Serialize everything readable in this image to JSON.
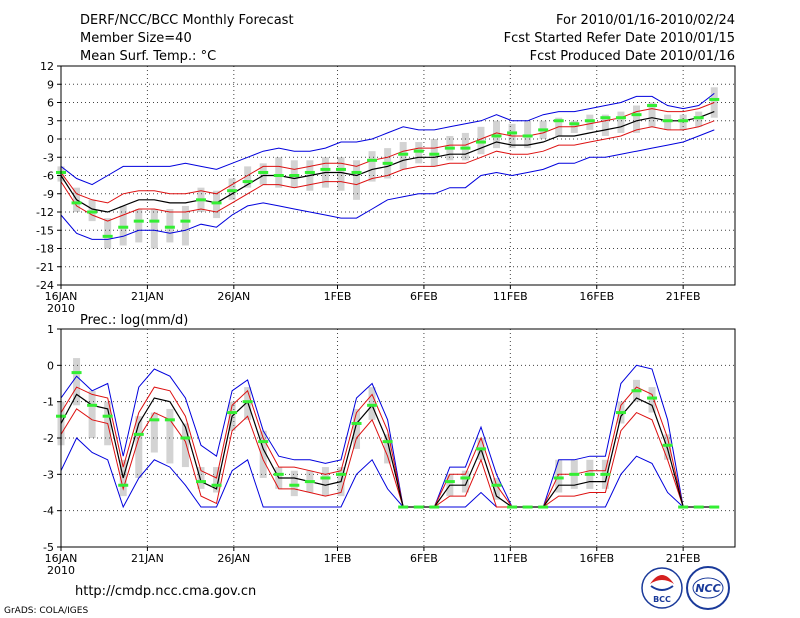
{
  "header": {
    "title_left": "DERF/NCC/BCC Monthly Forecast",
    "member_size": "Member Size=40",
    "variable": "Mean Surf. Temp.: °C",
    "period": "For 2010/01/16-2010/02/24",
    "started": "Fcst Started Refer Date 2010/01/15",
    "produced": "Fcst Produced Date 2010/01/16"
  },
  "footer": {
    "url": "http://cmdp.ncc.cma.gov.cn",
    "credit": "GrADS: COLA/IGES",
    "logo_bcc": "BCC",
    "logo_ncc": "NCC"
  },
  "colors": {
    "spread": "#d3d3d3",
    "median": "#33ee33",
    "mean": "#000000",
    "stdev": "#dd1111",
    "minmax": "#0000dd"
  },
  "chart_data": [
    {
      "type": "line",
      "title": "Mean Surf. Temp.: °C",
      "x_tick_labels": [
        "16JAN",
        "21JAN",
        "26JAN",
        "1FEB",
        "6FEB",
        "11FEB",
        "16FEB",
        "21FEB"
      ],
      "x_tick_days": [
        0,
        5,
        10,
        16,
        21,
        26,
        31,
        36
      ],
      "year_label": "2010",
      "x_range": [
        0,
        39
      ],
      "y_range": [
        -24,
        12
      ],
      "y_ticks": [
        12,
        9,
        6,
        3,
        0,
        -3,
        -6,
        -9,
        -12,
        -15,
        -18,
        -21,
        -24
      ],
      "grid": true,
      "series": [
        {
          "name": "mean",
          "values": [
            -6,
            -10,
            -11.5,
            -12,
            -11,
            -10,
            -10,
            -10.5,
            -10.5,
            -10,
            -10.5,
            -9,
            -7.5,
            -6,
            -6,
            -6.5,
            -6,
            -5.5,
            -5.5,
            -6,
            -5,
            -4.5,
            -3.5,
            -3,
            -3,
            -2.5,
            -2.5,
            -1.5,
            -0.5,
            -1,
            -1,
            -0.5,
            0.5,
            0.5,
            1,
            1.5,
            2,
            3,
            3.5,
            3,
            3,
            3.5,
            4.5
          ]
        },
        {
          "name": "upper",
          "values": [
            -5.5,
            -9,
            -10,
            -10.5,
            -9,
            -8.5,
            -8.5,
            -9,
            -9,
            -8.5,
            -9,
            -7.5,
            -6,
            -4.5,
            -4.5,
            -5,
            -4.5,
            -4,
            -4,
            -4.5,
            -3.5,
            -3,
            -2,
            -1.5,
            -1.5,
            -1,
            -1,
            0,
            1,
            0.5,
            0.5,
            1,
            2,
            2,
            2.5,
            3,
            3.5,
            4.5,
            5,
            4.5,
            4.5,
            5,
            6
          ]
        },
        {
          "name": "lower",
          "values": [
            -7,
            -11,
            -12.5,
            -13.5,
            -12.5,
            -11.5,
            -11.5,
            -12,
            -12,
            -11.5,
            -12,
            -10.5,
            -9,
            -7.5,
            -7.5,
            -8,
            -7.5,
            -7,
            -7,
            -7.5,
            -6.5,
            -6,
            -5,
            -4.5,
            -4.5,
            -4,
            -4,
            -3,
            -2,
            -2.5,
            -2.5,
            -2,
            -1,
            -1,
            -0.5,
            0,
            0.5,
            1.5,
            2,
            1.5,
            1.5,
            2,
            3
          ]
        },
        {
          "name": "max",
          "values": [
            -4.5,
            -6.5,
            -7.5,
            -6,
            -4.5,
            -4.5,
            -4.5,
            -4.5,
            -4,
            -4.5,
            -5,
            -4,
            -3,
            -2,
            -1.5,
            -2,
            -2,
            -1.5,
            -0.5,
            -0.5,
            0,
            1,
            2,
            1.5,
            1.5,
            2,
            2.5,
            3,
            4,
            3,
            3,
            4,
            4.5,
            4.5,
            5,
            5.5,
            6,
            7,
            7,
            5.5,
            5,
            5.5,
            7.5
          ]
        },
        {
          "name": "min",
          "values": [
            -12.5,
            -15.5,
            -16.5,
            -16.5,
            -16,
            -15,
            -15,
            -15.5,
            -15,
            -14,
            -14.5,
            -12.5,
            -11,
            -10.5,
            -11,
            -11.5,
            -12,
            -12.5,
            -13,
            -13,
            -11.5,
            -10,
            -9.5,
            -9,
            -9,
            -8,
            -8,
            -6,
            -5.5,
            -6,
            -5.5,
            -5,
            -4,
            -4,
            -3,
            -3,
            -2.5,
            -2,
            -1.5,
            -1,
            -0.5,
            0.5,
            1.5
          ]
        },
        {
          "name": "median",
          "values": [
            -5.5,
            -10.5,
            -12,
            -16,
            -14.5,
            -13.5,
            -13.5,
            -14.5,
            -13.5,
            -10,
            -10.5,
            -8.5,
            -7,
            -5.5,
            -6,
            -6,
            -5.5,
            -5,
            -5,
            -5.5,
            -3.5,
            -4,
            -2.5,
            -2,
            -2.5,
            -1.5,
            -1.5,
            -0.5,
            0.5,
            1,
            0.5,
            1.5,
            3,
            2.5,
            3,
            3.5,
            3.5,
            4,
            5.5,
            3,
            3,
            3.5,
            6.5
          ]
        },
        {
          "name": "box_high",
          "values": [
            -4.5,
            -8,
            -10,
            -13,
            -11,
            -11.5,
            -11.5,
            -11.5,
            -11,
            -8,
            -8.5,
            -6.5,
            -4.5,
            -4,
            -3,
            -3.5,
            -3.5,
            -3,
            -3,
            -3.5,
            -2,
            -1.5,
            -0.5,
            -0.5,
            0,
            0.5,
            1,
            2,
            3,
            2.5,
            3,
            3,
            3.5,
            3,
            4,
            4,
            4.5,
            5.5,
            6,
            4,
            4,
            4.5,
            8.5
          ]
        },
        {
          "name": "box_low",
          "values": [
            -7,
            -12,
            -13.5,
            -18,
            -17.5,
            -17,
            -18,
            -17,
            -17.5,
            -12,
            -13,
            -10,
            -8,
            -7.5,
            -8,
            -8,
            -8.5,
            -8,
            -8.5,
            -10,
            -7,
            -6.5,
            -5,
            -4,
            -4.5,
            -3.5,
            -3.5,
            -2.5,
            -1.5,
            -1.5,
            -1.5,
            0,
            0.5,
            1,
            1.5,
            0.5,
            1,
            1,
            2,
            1.5,
            1.5,
            2,
            3.5
          ]
        }
      ]
    },
    {
      "type": "line",
      "title": "Prec.: log(mm/d)",
      "x_tick_labels": [
        "16JAN",
        "21JAN",
        "26JAN",
        "1FEB",
        "6FEB",
        "11FEB",
        "16FEB",
        "21FEB"
      ],
      "x_tick_days": [
        0,
        5,
        10,
        16,
        21,
        26,
        31,
        36
      ],
      "year_label": "2010",
      "x_range": [
        0,
        39
      ],
      "y_range": [
        -5,
        1
      ],
      "y_ticks": [
        1,
        0,
        -1,
        -2,
        -3,
        -4,
        -5
      ],
      "grid": true,
      "series": [
        {
          "name": "mean",
          "values": [
            -1.6,
            -0.8,
            -1.1,
            -1.2,
            -3.1,
            -1.6,
            -0.9,
            -1.0,
            -1.7,
            -3.2,
            -3.4,
            -1.4,
            -1.0,
            -2.3,
            -3.1,
            -3.1,
            -3.2,
            -3.3,
            -3.2,
            -1.6,
            -1.1,
            -2.1,
            -3.9,
            -3.9,
            -3.9,
            -3.3,
            -3.3,
            -2.3,
            -3.6,
            -3.9,
            -3.9,
            -3.9,
            -3.3,
            -3.3,
            -3.2,
            -3.2,
            -1.4,
            -0.9,
            -1.1,
            -2.3,
            -3.9,
            -3.9,
            -3.9
          ]
        },
        {
          "name": "upper",
          "values": [
            -1.3,
            -0.6,
            -0.8,
            -0.9,
            -2.8,
            -1.3,
            -0.6,
            -0.7,
            -1.4,
            -2.9,
            -3.1,
            -1.1,
            -0.7,
            -2.0,
            -2.8,
            -2.8,
            -2.9,
            -3.0,
            -2.9,
            -1.3,
            -0.8,
            -1.8,
            -3.9,
            -3.9,
            -3.9,
            -3.0,
            -3.0,
            -2.0,
            -3.3,
            -3.9,
            -3.9,
            -3.9,
            -3.0,
            -3.0,
            -2.9,
            -2.9,
            -1.1,
            -0.6,
            -0.8,
            -2.0,
            -3.9,
            -3.9,
            -3.9
          ]
        },
        {
          "name": "lower",
          "values": [
            -1.9,
            -1.2,
            -1.5,
            -1.6,
            -3.4,
            -2.0,
            -1.3,
            -1.5,
            -2.1,
            -3.6,
            -3.8,
            -1.8,
            -1.4,
            -2.6,
            -3.4,
            -3.4,
            -3.5,
            -3.6,
            -3.5,
            -2.0,
            -1.5,
            -2.5,
            -3.9,
            -3.9,
            -3.9,
            -3.6,
            -3.6,
            -2.6,
            -3.9,
            -3.9,
            -3.9,
            -3.9,
            -3.6,
            -3.6,
            -3.5,
            -3.5,
            -1.8,
            -1.3,
            -1.5,
            -2.6,
            -3.9,
            -3.9,
            -3.9
          ]
        },
        {
          "name": "max",
          "values": [
            -0.9,
            -0.3,
            -0.7,
            -0.5,
            -2.5,
            -0.6,
            -0.1,
            -0.3,
            -0.9,
            -2.2,
            -2.5,
            -0.7,
            -0.4,
            -1.8,
            -2.5,
            -2.6,
            -2.6,
            -2.7,
            -2.6,
            -0.9,
            -0.5,
            -1.5,
            -3.9,
            -3.9,
            -3.9,
            -2.8,
            -2.8,
            -1.7,
            -3.0,
            -3.9,
            -3.9,
            -3.9,
            -2.6,
            -2.6,
            -2.5,
            -2.5,
            -0.5,
            0.0,
            -0.1,
            -1.5,
            -3.9,
            -3.9,
            -3.9
          ]
        },
        {
          "name": "min",
          "values": [
            -2.9,
            -2.0,
            -2.4,
            -2.6,
            -3.9,
            -3.1,
            -2.6,
            -2.8,
            -3.3,
            -3.9,
            -3.9,
            -2.9,
            -2.6,
            -3.9,
            -3.9,
            -3.9,
            -3.9,
            -3.9,
            -3.9,
            -3.0,
            -2.6,
            -3.4,
            -3.9,
            -3.9,
            -3.9,
            -3.9,
            -3.9,
            -3.5,
            -3.9,
            -3.9,
            -3.9,
            -3.9,
            -3.9,
            -3.9,
            -3.9,
            -3.9,
            -3.0,
            -2.5,
            -2.7,
            -3.5,
            -3.9,
            -3.9,
            -3.9
          ]
        },
        {
          "name": "median",
          "values": [
            -1.4,
            -0.2,
            -1.1,
            -1.4,
            -3.3,
            -1.9,
            -1.5,
            -1.5,
            -2.0,
            -3.2,
            -3.3,
            -1.3,
            -1.0,
            -2.1,
            -3.0,
            -3.3,
            -3.2,
            -3.1,
            -3.0,
            -1.6,
            -1.1,
            -2.1,
            -3.9,
            -3.9,
            -3.9,
            -3.2,
            -3.1,
            -2.3,
            -3.3,
            -3.9,
            -3.9,
            -3.9,
            -3.1,
            -3.0,
            -3.0,
            -3.0,
            -1.3,
            -0.7,
            -0.9,
            -2.2,
            -3.9,
            -3.9,
            -3.9
          ]
        },
        {
          "name": "box_high",
          "values": [
            -1.0,
            0.2,
            -0.7,
            -1.0,
            -2.6,
            -1.4,
            -1.3,
            -1.2,
            -1.6,
            -2.8,
            -2.8,
            -1.0,
            -0.6,
            -1.8,
            -2.8,
            -2.9,
            -2.9,
            -2.8,
            -2.8,
            -1.2,
            -0.6,
            -1.9,
            -3.9,
            -3.9,
            -3.9,
            -3.0,
            -2.9,
            -2.0,
            -3.1,
            -3.9,
            -3.9,
            -3.9,
            -2.6,
            -2.6,
            -2.6,
            -2.6,
            -1.0,
            -0.4,
            -0.6,
            -1.9,
            -3.9,
            -3.9,
            -3.9
          ]
        },
        {
          "name": "box_low",
          "values": [
            -2.2,
            -1.1,
            -2.0,
            -2.2,
            -3.6,
            -3.1,
            -2.4,
            -2.7,
            -2.8,
            -3.4,
            -3.5,
            -1.8,
            -1.5,
            -3.1,
            -3.4,
            -3.6,
            -3.5,
            -3.6,
            -3.6,
            -2.3,
            -1.5,
            -2.7,
            -3.9,
            -3.9,
            -3.9,
            -3.6,
            -3.5,
            -2.6,
            -3.7,
            -3.9,
            -3.9,
            -3.9,
            -3.5,
            -3.4,
            -3.4,
            -3.4,
            -1.6,
            -1.0,
            -1.3,
            -2.6,
            -3.9,
            -3.9,
            -3.9
          ]
        }
      ]
    }
  ]
}
